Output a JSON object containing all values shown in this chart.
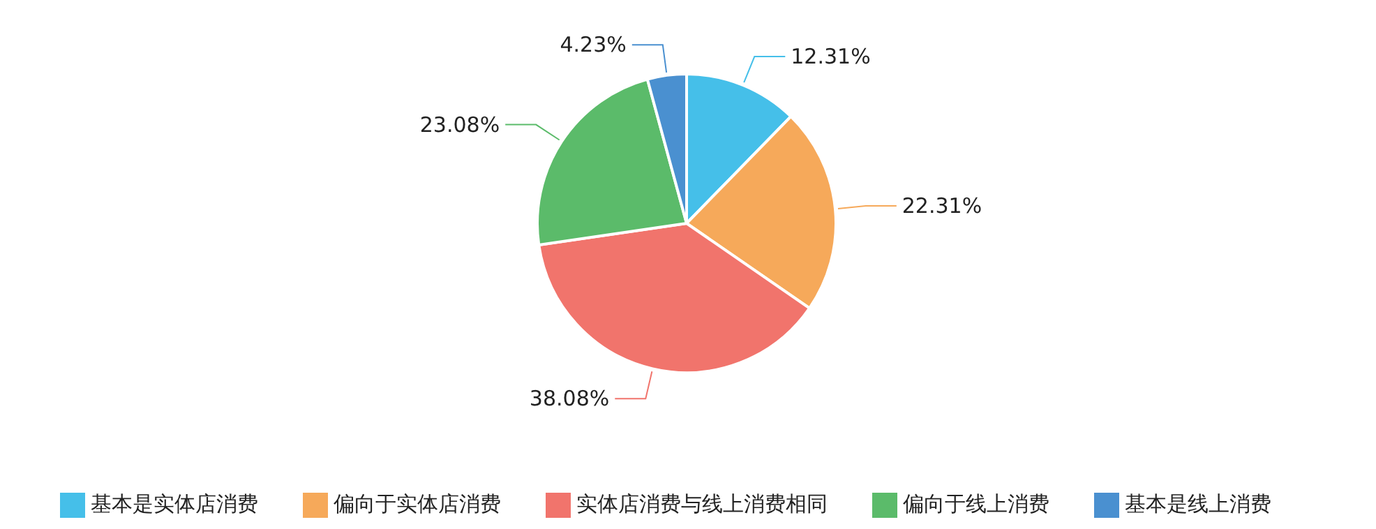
{
  "chart_data": {
    "type": "pie",
    "categories": [
      "基本是实体店消费",
      "偏向于实体店消费",
      "实体店消费与线上消费相同",
      "偏向于线上消费",
      "基本是线上消费"
    ],
    "values": [
      12.31,
      22.31,
      38.08,
      23.08,
      4.23
    ],
    "value_labels": [
      "12.31%",
      "22.31%",
      "38.08%",
      "23.08%",
      "4.23%"
    ],
    "colors": [
      "#45bfe9",
      "#f6a95a",
      "#f1746c",
      "#5bbb6a",
      "#4a90d0"
    ],
    "legend": "bottom"
  }
}
